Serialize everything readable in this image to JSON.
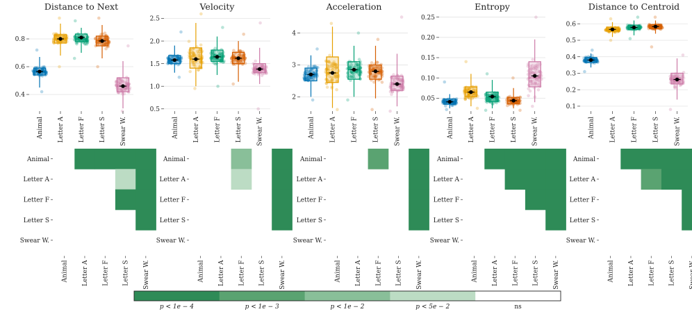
{
  "groups": [
    "Animal",
    "Letter A",
    "Letter F",
    "Letter S",
    "Swear W."
  ],
  "colors": {
    "groups": [
      "#0072b2",
      "#e69f00",
      "#009e73",
      "#d55e00",
      "#cc79a7"
    ],
    "sig": [
      "#2e8b57",
      "#5aa371",
      "#89bf99",
      "#bcdcc4",
      "#ffffff"
    ]
  },
  "legend": {
    "labels": [
      "p < 1e − 4",
      "p < 1e − 3",
      "p < 1e − 2",
      "p < 5e − 2",
      "ns"
    ]
  },
  "chart_data": [
    {
      "type": "box",
      "title": "Distance to Next",
      "ylim": [
        0.28,
        0.98
      ],
      "yticks": [
        0.4,
        0.6,
        0.8
      ],
      "ytick_labels": [
        "0.4",
        "0.6",
        "0.8"
      ],
      "boxes": [
        {
          "q1": 0.54,
          "median": 0.565,
          "q3": 0.59,
          "whisker_low": 0.45,
          "whisker_high": 0.67,
          "mean": 0.565,
          "point_min": 0.42,
          "point_max": 0.72
        },
        {
          "q1": 0.77,
          "median": 0.8,
          "q3": 0.83,
          "whisker_low": 0.68,
          "whisker_high": 0.91,
          "mean": 0.8,
          "point_min": 0.6,
          "point_max": 0.95
        },
        {
          "q1": 0.78,
          "median": 0.8,
          "q3": 0.835,
          "whisker_low": 0.7,
          "whisker_high": 0.88,
          "mean": 0.81,
          "point_min": 0.66,
          "point_max": 0.93
        },
        {
          "q1": 0.75,
          "median": 0.79,
          "q3": 0.82,
          "whisker_low": 0.66,
          "whisker_high": 0.9,
          "mean": 0.785,
          "point_min": 0.6,
          "point_max": 0.95
        },
        {
          "q1": 0.42,
          "median": 0.46,
          "q3": 0.52,
          "whisker_low": 0.3,
          "whisker_high": 0.64,
          "mean": 0.46,
          "point_min": 0.28,
          "point_max": 0.75
        }
      ],
      "matrix": [
        [
          0,
          1,
          1,
          1,
          1
        ],
        [
          0,
          0,
          0,
          4,
          1
        ],
        [
          0,
          0,
          0,
          1,
          1
        ],
        [
          0,
          0,
          0,
          0,
          1
        ],
        [
          0,
          0,
          0,
          0,
          0
        ]
      ]
    },
    {
      "type": "box",
      "title": "Velocity",
      "ylim": [
        0.45,
        2.6
      ],
      "yticks": [
        0.5,
        1.0,
        1.5,
        2.0,
        2.5
      ],
      "ytick_labels": [
        "0.5",
        "1.0",
        "1.5",
        "2.0",
        "2.5"
      ],
      "boxes": [
        {
          "q1": 1.5,
          "median": 1.58,
          "q3": 1.68,
          "whisker_low": 1.3,
          "whisker_high": 1.9,
          "mean": 1.58,
          "point_min": 1.2,
          "point_max": 2.2
        },
        {
          "q1": 1.4,
          "median": 1.6,
          "q3": 1.85,
          "whisker_low": 1.0,
          "whisker_high": 2.4,
          "mean": 1.6,
          "point_min": 0.95,
          "point_max": 2.6
        },
        {
          "q1": 1.55,
          "median": 1.65,
          "q3": 1.8,
          "whisker_low": 1.25,
          "whisker_high": 2.1,
          "mean": 1.65,
          "point_min": 1.0,
          "point_max": 2.3
        },
        {
          "q1": 1.5,
          "median": 1.62,
          "q3": 1.75,
          "whisker_low": 1.1,
          "whisker_high": 2.0,
          "mean": 1.62,
          "point_min": 1.05,
          "point_max": 2.15
        },
        {
          "q1": 1.3,
          "median": 1.38,
          "q3": 1.5,
          "whisker_low": 1.05,
          "whisker_high": 1.85,
          "mean": 1.38,
          "point_min": 0.5,
          "point_max": 2.4
        }
      ],
      "matrix": [
        [
          0,
          0,
          3,
          0,
          1
        ],
        [
          0,
          0,
          4,
          0,
          1
        ],
        [
          0,
          0,
          0,
          0,
          1
        ],
        [
          0,
          0,
          0,
          0,
          1
        ],
        [
          0,
          0,
          0,
          0,
          0
        ]
      ]
    },
    {
      "type": "box",
      "title": "Acceleration",
      "ylim": [
        1.55,
        4.6
      ],
      "yticks": [
        2,
        3,
        4
      ],
      "ytick_labels": [
        "2",
        "3",
        "4"
      ],
      "boxes": [
        {
          "q1": 2.5,
          "median": 2.7,
          "q3": 2.9,
          "whisker_low": 2.0,
          "whisker_high": 3.3,
          "mean": 2.7,
          "point_min": 1.9,
          "point_max": 3.5
        },
        {
          "q1": 2.45,
          "median": 2.75,
          "q3": 3.25,
          "whisker_low": 1.65,
          "whisker_high": 4.2,
          "mean": 2.75,
          "point_min": 1.6,
          "point_max": 4.3
        },
        {
          "q1": 2.55,
          "median": 2.85,
          "q3": 3.1,
          "whisker_low": 2.0,
          "whisker_high": 3.6,
          "mean": 2.85,
          "point_min": 1.9,
          "point_max": 4.0
        },
        {
          "q1": 2.55,
          "median": 2.8,
          "q3": 3.0,
          "whisker_low": 1.95,
          "whisker_high": 3.6,
          "mean": 2.8,
          "point_min": 1.6,
          "point_max": 3.8
        },
        {
          "q1": 2.2,
          "median": 2.4,
          "q3": 2.65,
          "whisker_low": 1.7,
          "whisker_high": 3.35,
          "mean": 2.4,
          "point_min": 1.55,
          "point_max": 4.5
        }
      ],
      "matrix": [
        [
          0,
          0,
          2,
          0,
          1
        ],
        [
          0,
          0,
          0,
          0,
          1
        ],
        [
          0,
          0,
          0,
          0,
          1
        ],
        [
          0,
          0,
          0,
          0,
          1
        ],
        [
          0,
          0,
          0,
          0,
          0
        ]
      ]
    },
    {
      "type": "box",
      "title": "Entropy",
      "ylim": [
        0.018,
        0.258
      ],
      "yticks": [
        0.05,
        0.1,
        0.15,
        0.2,
        0.25
      ],
      "ytick_labels": [
        "0.05",
        "0.10",
        "0.15",
        "0.20",
        "0.25"
      ],
      "boxes": [
        {
          "q1": 0.035,
          "median": 0.041,
          "q3": 0.048,
          "whisker_low": 0.025,
          "whisker_high": 0.06,
          "mean": 0.041,
          "point_min": 0.022,
          "point_max": 0.09
        },
        {
          "q1": 0.054,
          "median": 0.064,
          "q3": 0.078,
          "whisker_low": 0.03,
          "whisker_high": 0.11,
          "mean": 0.065,
          "point_min": 0.025,
          "point_max": 0.14
        },
        {
          "q1": 0.042,
          "median": 0.052,
          "q3": 0.065,
          "whisker_low": 0.025,
          "whisker_high": 0.095,
          "mean": 0.054,
          "point_min": 0.02,
          "point_max": 0.11
        },
        {
          "q1": 0.036,
          "median": 0.043,
          "q3": 0.052,
          "whisker_low": 0.025,
          "whisker_high": 0.075,
          "mean": 0.044,
          "point_min": 0.02,
          "point_max": 0.1
        },
        {
          "q1": 0.078,
          "median": 0.1,
          "q3": 0.14,
          "whisker_low": 0.04,
          "whisker_high": 0.195,
          "mean": 0.105,
          "point_min": 0.03,
          "point_max": 0.25
        }
      ],
      "matrix": [
        [
          0,
          1,
          1,
          1,
          1
        ],
        [
          0,
          0,
          1,
          1,
          1
        ],
        [
          0,
          0,
          0,
          1,
          1
        ],
        [
          0,
          0,
          0,
          0,
          1
        ],
        [
          0,
          0,
          0,
          0,
          0
        ]
      ]
    },
    {
      "type": "box",
      "title": "Distance to Centroid",
      "ylim": [
        0.07,
        0.66
      ],
      "yticks": [
        0.1,
        0.2,
        0.3,
        0.4,
        0.5,
        0.6
      ],
      "ytick_labels": [
        "0.1",
        "0.2",
        "0.3",
        "0.4",
        "0.5",
        "0.6"
      ],
      "boxes": [
        {
          "q1": 0.365,
          "median": 0.38,
          "q3": 0.395,
          "whisker_low": 0.335,
          "whisker_high": 0.42,
          "mean": 0.38,
          "point_min": 0.31,
          "point_max": 0.44
        },
        {
          "q1": 0.555,
          "median": 0.565,
          "q3": 0.58,
          "whisker_low": 0.52,
          "whisker_high": 0.61,
          "mean": 0.566,
          "point_min": 0.5,
          "point_max": 0.63
        },
        {
          "q1": 0.565,
          "median": 0.577,
          "q3": 0.592,
          "whisker_low": 0.53,
          "whisker_high": 0.62,
          "mean": 0.578,
          "point_min": 0.51,
          "point_max": 0.64
        },
        {
          "q1": 0.57,
          "median": 0.582,
          "q3": 0.595,
          "whisker_low": 0.54,
          "whisker_high": 0.62,
          "mean": 0.583,
          "point_min": 0.46,
          "point_max": 0.64
        },
        {
          "q1": 0.235,
          "median": 0.26,
          "q3": 0.3,
          "whisker_low": 0.14,
          "whisker_high": 0.39,
          "mean": 0.262,
          "point_min": 0.08,
          "point_max": 0.41
        }
      ],
      "matrix": [
        [
          0,
          1,
          1,
          1,
          1
        ],
        [
          0,
          0,
          2,
          1,
          1
        ],
        [
          0,
          0,
          0,
          0,
          1
        ],
        [
          0,
          0,
          0,
          0,
          1
        ],
        [
          0,
          0,
          0,
          0,
          0
        ]
      ]
    }
  ]
}
